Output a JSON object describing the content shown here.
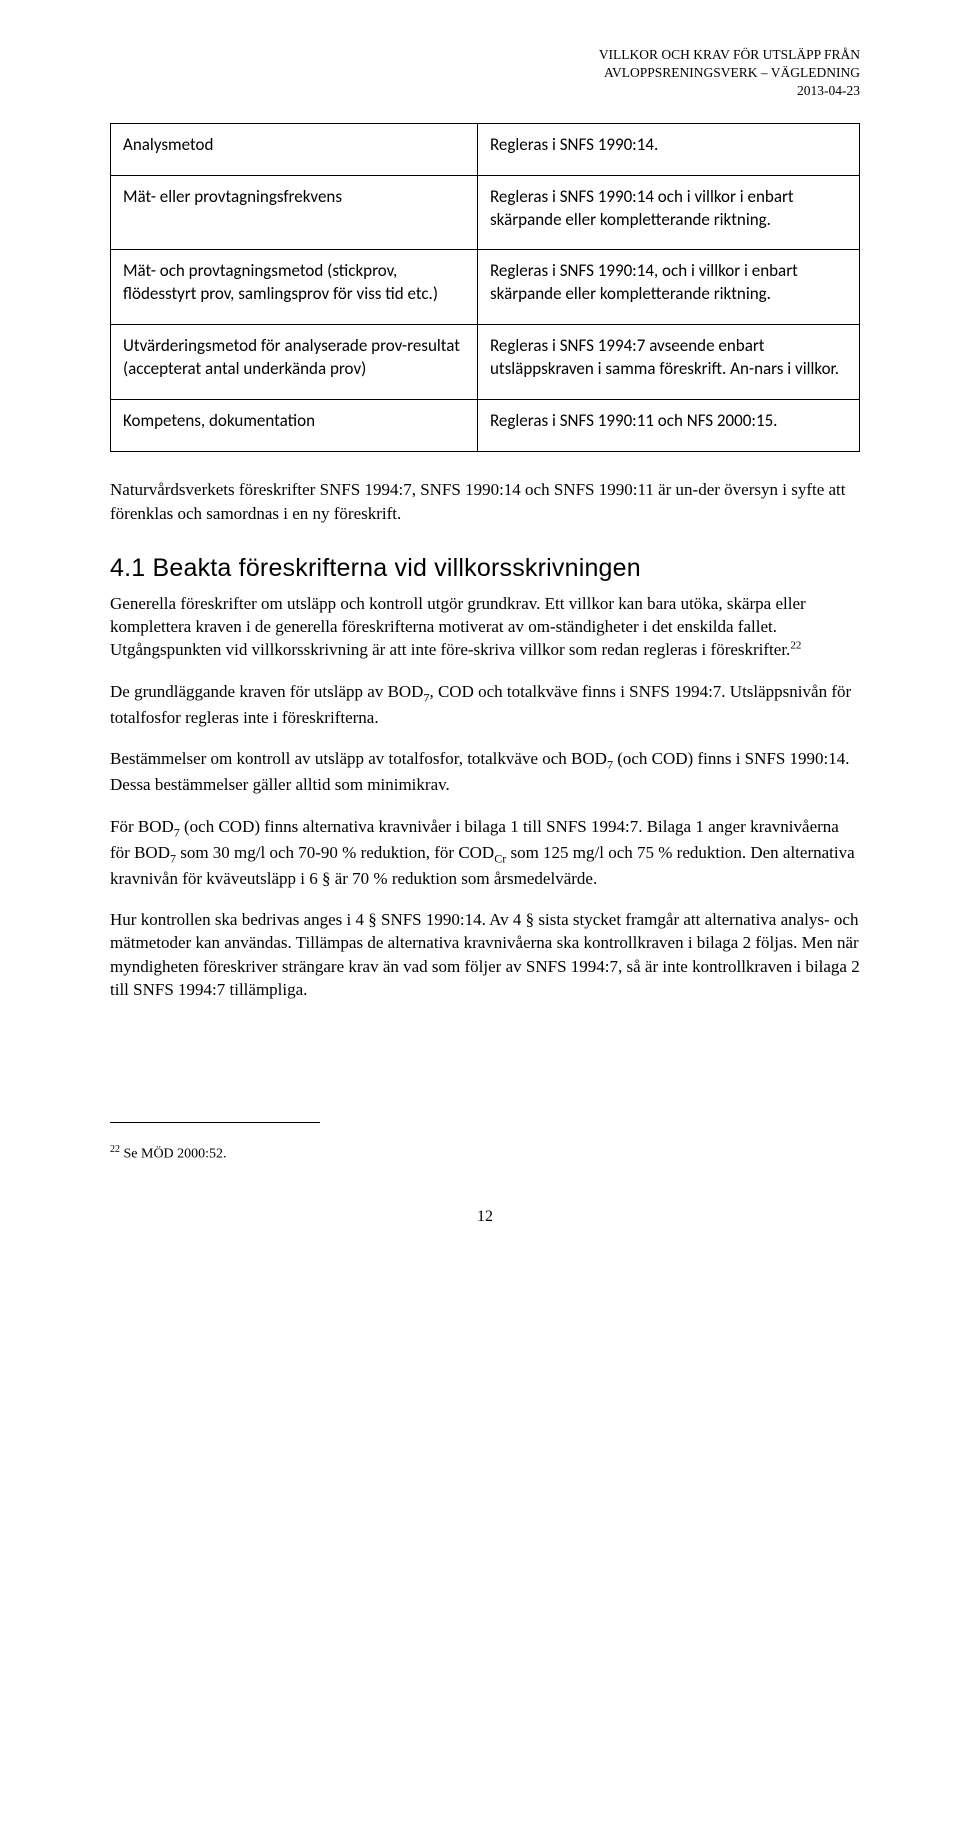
{
  "header": {
    "line1": "VILLKOR OCH KRAV FÖR UTSLÄPP FRÅN",
    "line2": "AVLOPPSRENINGSVERK – VÄGLEDNING",
    "line3": "2013-04-23"
  },
  "table": {
    "rows": [
      {
        "left": "Analysmetod",
        "right": "Regleras i SNFS 1990:14."
      },
      {
        "left": "Mät- eller provtagningsfrekvens",
        "right": "Regleras i SNFS 1990:14 och i villkor i enbart skärpande eller kompletterande riktning."
      },
      {
        "left": "Mät- och provtagningsmetod (stickprov, flödesstyrt prov, samlingsprov för viss tid etc.)",
        "right": "Regleras i SNFS 1990:14, och i villkor i enbart skärpande eller kompletterande riktning."
      },
      {
        "left": "Utvärderingsmetod för analyserade prov-resultat (accepterat antal underkända prov)",
        "right": "Regleras i SNFS 1994:7 avseende enbart utsläppskraven i samma föreskrift. An-nars i villkor."
      },
      {
        "left": "Kompetens, dokumentation",
        "right": "Regleras i SNFS 1990:11 och NFS 2000:15."
      }
    ]
  },
  "para1": "Naturvårdsverkets föreskrifter SNFS 1994:7, SNFS 1990:14 och SNFS 1990:11 är un-der översyn i syfte att förenklas och samordnas i en ny föreskrift.",
  "section41": {
    "title": "4.1 Beakta föreskrifterna vid villkorsskrivningen"
  },
  "para2a": "Generella föreskrifter om utsläpp och kontroll utgör grundkrav. Ett villkor kan bara utöka, skärpa eller komplettera kraven i de generella föreskrifterna motiverat av om-ständigheter i det enskilda fallet. Utgångspunkten vid villkorsskrivning är att inte före-skriva villkor som redan regleras i föreskrifter.",
  "fnref": "22",
  "para3a": "De grundläggande kraven för utsläpp av BOD",
  "para3b": ", COD och totalkväve finns i SNFS 1994:7. Utsläppsnivån för totalfosfor regleras inte i föreskrifterna.",
  "para4a": "Bestämmelser om kontroll av utsläpp av totalfosfor, totalkväve och BOD",
  "para4b": " (och COD) finns i SNFS 1990:14. Dessa bestämmelser gäller alltid som minimikrav.",
  "para5a": "För BOD",
  "para5b": " (och COD) finns alternativa kravnivåer i bilaga 1 till SNFS 1994:7. Bilaga 1 anger kravnivåerna för BOD",
  "para5c": " som 30 mg/l och 70-90 % reduktion, för COD",
  "para5d": " som 125 mg/l och 75 % reduktion. Den alternativa kravnivån för kväveutsläpp i 6 § är 70 % reduktion som årsmedelvärde.",
  "para6": "Hur kontrollen ska bedrivas anges i 4 § SNFS 1990:14. Av 4 § sista stycket framgår att alternativa analys- och mätmetoder kan användas. Tillämpas de alternativa kravnivåerna ska kontrollkraven i bilaga 2 följas.  Men när myndigheten föreskriver strängare krav än vad som följer av SNFS 1994:7, så är inte kontrollkraven i bilaga 2 till SNFS 1994:7 tillämpliga.",
  "sub7": "7",
  "subCr": "Cr",
  "footnote": {
    "num": "22",
    "text": " Se MÖD 2000:52."
  },
  "pageno": "12"
}
